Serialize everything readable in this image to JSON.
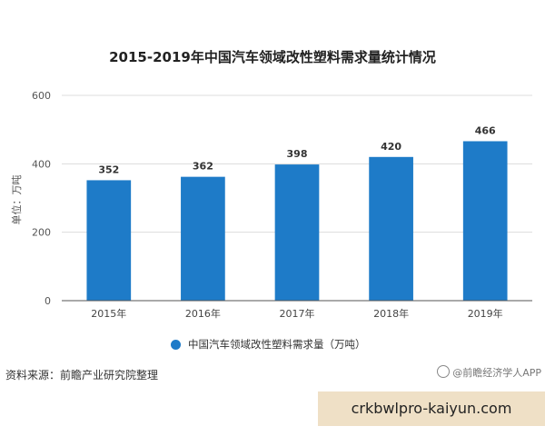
{
  "chart_data": {
    "type": "bar",
    "title": "2015-2019年中国汽车领域改性塑料需求量统计情况",
    "ylabel": "单位：万吨",
    "xlabel": "",
    "categories": [
      "2015年",
      "2016年",
      "2017年",
      "2018年",
      "2019年"
    ],
    "series": [
      {
        "name": "中国汽车领域改性塑料需求量（万吨）",
        "values": [
          352,
          362,
          398,
          420,
          466
        ]
      }
    ],
    "data_labels": [
      "352",
      "362",
      "398",
      "420",
      "466"
    ],
    "ylim": [
      0,
      600
    ],
    "yticks": [
      0,
      200,
      400,
      600
    ],
    "grid": true,
    "legend_position": "bottom",
    "bar_color": "#1e7bc8"
  },
  "source": "资料来源：前瞻产业研究院整理",
  "watermark": "@前瞻经济学人APP",
  "banner": {
    "text": "crkbwlpro-kaiyun.com",
    "color": "#efe0c6"
  }
}
